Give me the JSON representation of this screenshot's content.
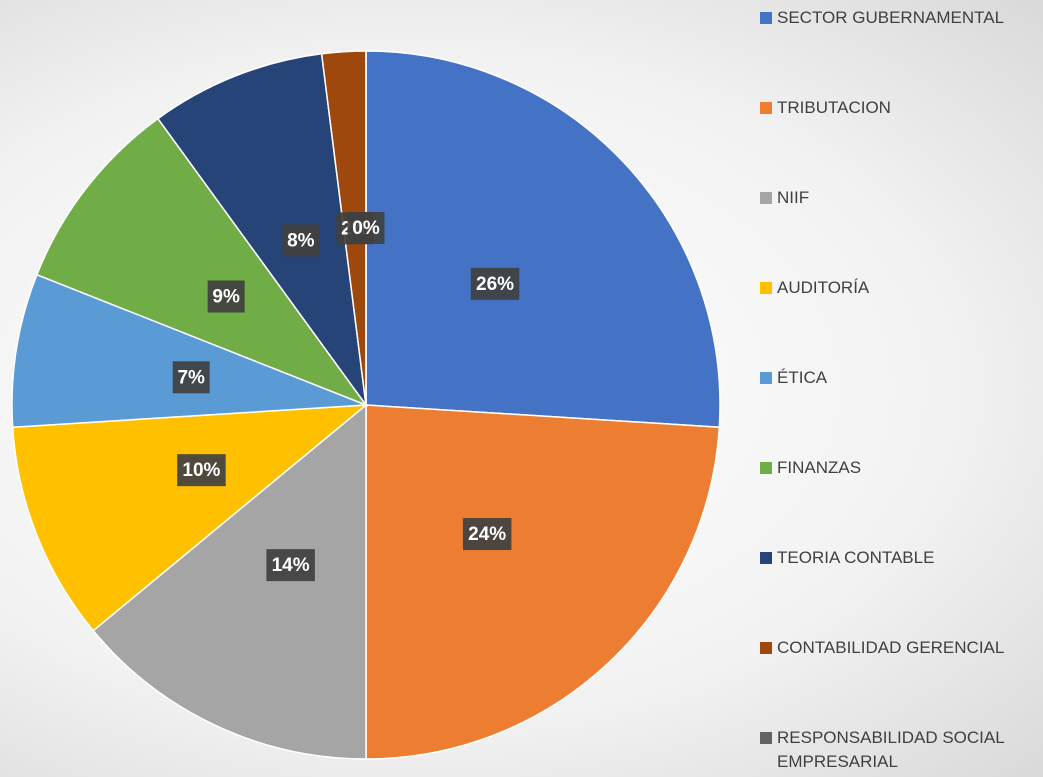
{
  "chart_data": {
    "type": "pie",
    "categories": [
      "SECTOR GUBERNAMENTAL",
      "TRIBUTACION",
      "NIIF",
      "AUDITORÍA",
      "ÉTICA",
      "FINANZAS",
      "TEORIA CONTABLE",
      "CONTABILIDAD GERENCIAL",
      "RESPONSABILIDAD SOCIAL EMPRESARIAL"
    ],
    "values": [
      26,
      24,
      14,
      10,
      7,
      9,
      8,
      2,
      0
    ],
    "value_labels": [
      "26%",
      "24%",
      "14%",
      "10%",
      "7%",
      "9%",
      "8%",
      "2%",
      "0%"
    ],
    "colors": [
      "#4472c4",
      "#ed7d31",
      "#a5a5a5",
      "#ffc000",
      "#5b9bd5",
      "#70ad47",
      "#264478",
      "#9e480e",
      "#636363"
    ],
    "legend": "right"
  }
}
